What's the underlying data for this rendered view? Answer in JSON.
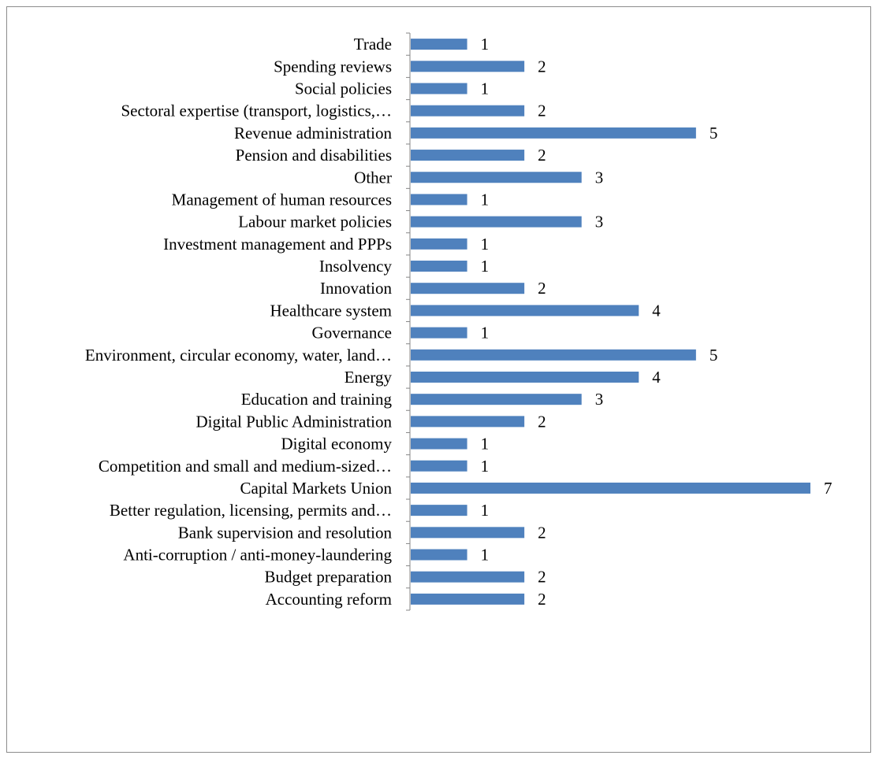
{
  "chart_data": {
    "type": "bar",
    "orientation": "horizontal",
    "categories": [
      "Trade",
      "Spending reviews",
      "Social policies",
      "Sectoral expertise (transport, logistics,…",
      "Revenue administration",
      "Pension and disabilities",
      "Other",
      "Management of human resources",
      "Labour market policies",
      "Investment management and PPPs",
      "Insolvency",
      "Innovation",
      "Healthcare system",
      "Governance",
      "Environment, circular economy, water, land…",
      "Energy",
      "Education and training",
      "Digital Public Administration",
      "Digital economy",
      "Competition and small and medium-sized…",
      "Capital Markets Union",
      "Better regulation, licensing, permits and…",
      "Bank supervision and resolution",
      "Anti-corruption / anti-money-laundering",
      "Budget preparation",
      "Accounting reform"
    ],
    "values": [
      1,
      2,
      1,
      2,
      5,
      2,
      3,
      1,
      3,
      1,
      1,
      2,
      4,
      1,
      5,
      4,
      3,
      2,
      1,
      1,
      7,
      1,
      2,
      1,
      2,
      2
    ],
    "xlim": [
      0,
      7
    ],
    "grid": false,
    "legend": "none",
    "bar_color": "#4F81BD",
    "axis_color": "#868686",
    "title": "",
    "xlabel": "",
    "ylabel": ""
  }
}
